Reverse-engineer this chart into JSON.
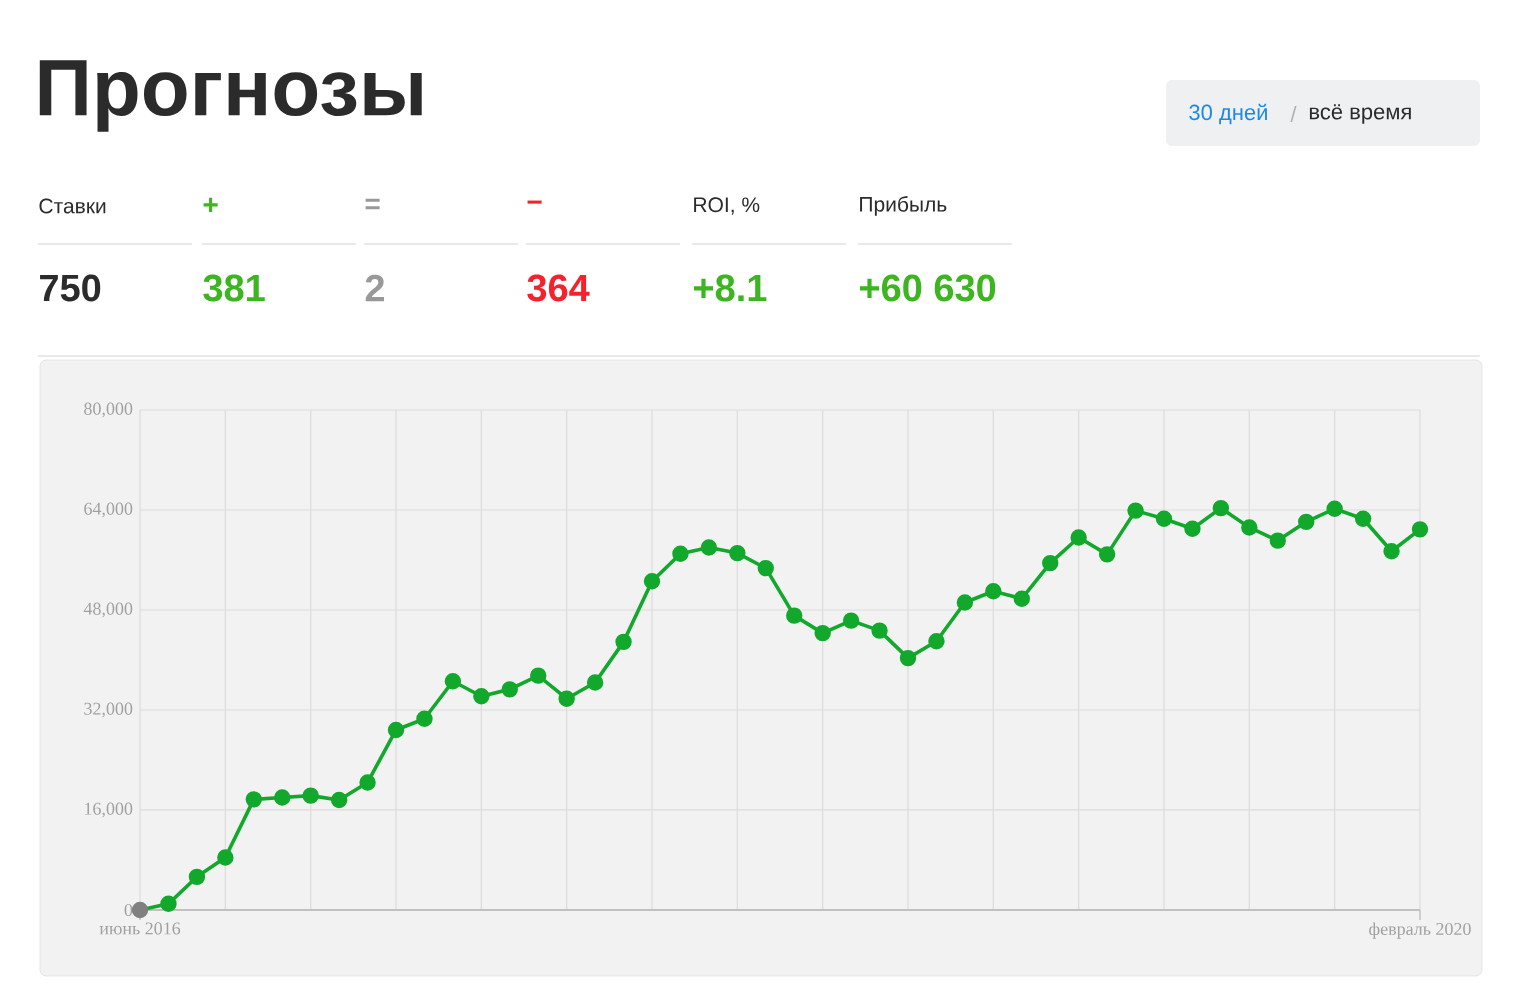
{
  "chart_data": {
    "type": "line",
    "title": "Прогнозы",
    "annotations": [
      "30 дней",
      "/",
      "всё время",
      "Ставки",
      "750",
      "+",
      "381",
      "=",
      "2",
      "−",
      "364",
      "ROI, %",
      "+8.1",
      "Прибыль",
      "+60 630"
    ],
    "categories": [
      "июнь 2016",
      null,
      null,
      null,
      null,
      null,
      null,
      null,
      null,
      null,
      null,
      null,
      null,
      null,
      null,
      null,
      null,
      null,
      null,
      null,
      null,
      null,
      null,
      null,
      null,
      null,
      null,
      null,
      null,
      null,
      null,
      null,
      null,
      null,
      null,
      null,
      null,
      null,
      null,
      null,
      null,
      null,
      null,
      null,
      null,
      "февраль 2020"
    ],
    "series": [
      {
        "color": "#12a82c",
        "colors": [
          "#808080",
          "#12a82c",
          "#12a82c",
          "#12a82c",
          "#12a82c",
          "#12a82c",
          "#12a82c",
          "#12a82c",
          "#12a82c",
          "#12a82c",
          "#12a82c",
          "#12a82c",
          "#12a82c",
          "#12a82c",
          "#12a82c",
          "#12a82c",
          "#12a82c",
          "#12a82c",
          "#12a82c",
          "#12a82c",
          "#12a82c",
          "#12a82c",
          "#12a82c",
          "#12a82c",
          "#12a82c",
          "#12a82c",
          "#12a82c",
          "#12a82c",
          "#12a82c",
          "#12a82c",
          "#12a82c",
          "#12a82c",
          "#12a82c",
          "#12a82c",
          "#12a82c",
          "#12a82c",
          "#12a82c",
          "#12a82c",
          "#12a82c",
          "#12a82c",
          "#12a82c",
          "#12a82c",
          "#12a82c",
          "#12a82c",
          "#12a82c",
          "#12a82c"
        ],
        "values": [
          0,
          1000,
          5300,
          8400,
          17700,
          18000,
          18300,
          17600,
          20400,
          28800,
          30600,
          36600,
          34200,
          35300,
          37500,
          33800,
          36400,
          42900,
          52600,
          57000,
          58000,
          57100,
          54700,
          47100,
          44300,
          46300,
          44700,
          40300,
          43000,
          49200,
          51000,
          49800,
          55500,
          59600,
          56900,
          63900,
          62600,
          61000,
          64300,
          61200,
          59100,
          62100,
          64200,
          62600,
          57400,
          60900
        ]
      }
    ],
    "ylim": [
      0,
      80000
    ],
    "yticks": [
      0,
      {
        "value": 16000,
        "label": "16,000"
      },
      {
        "value": 32000,
        "label": "32,000"
      },
      {
        "value": 48000,
        "label": "48,000"
      },
      {
        "value": 64000,
        "label": "64,000"
      },
      {
        "value": 80000,
        "label": "80,000"
      }
    ],
    "grid": true,
    "marker": "circle",
    "line_style": "solid"
  }
}
